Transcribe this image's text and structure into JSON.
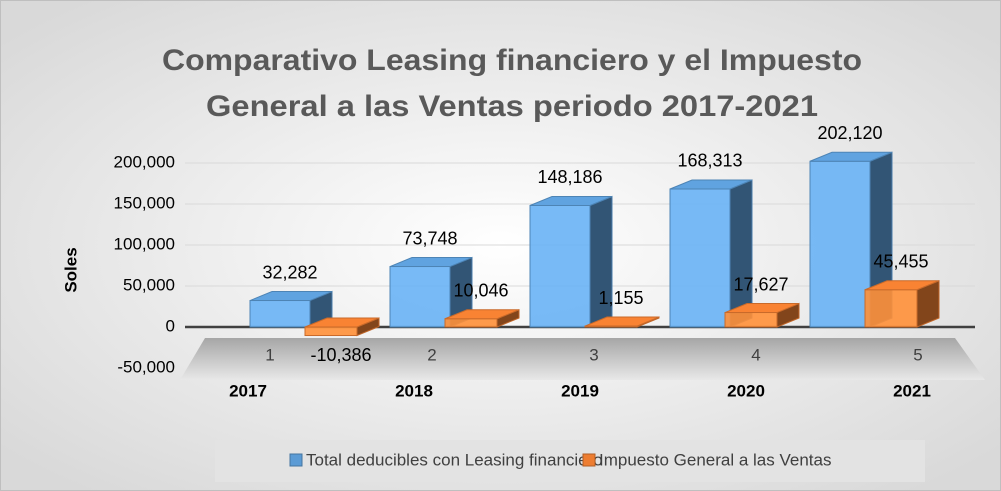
{
  "chart_data": {
    "type": "bar3d",
    "title": "Comparativo Leasing financiero y el Impuesto",
    "subtitle": "General a las Ventas periodo 2017-2021",
    "ylabel": "Soles",
    "categories": [
      "2017",
      "2018",
      "2019",
      "2020",
      "2021"
    ],
    "depth_labels": [
      1,
      2,
      3,
      4,
      5
    ],
    "series": [
      {
        "name": "Total deducibles con Leasing financiero",
        "color": "#5b9bd5",
        "values": [
          32282,
          73748,
          148186,
          168313,
          202120
        ],
        "value_labels": [
          "32,282",
          "73,748",
          "148,186",
          "168,313",
          "202,120"
        ]
      },
      {
        "name": "Impuesto General a las Ventas",
        "color": "#ed7d31",
        "values": [
          -10386,
          10046,
          1155,
          17627,
          45455
        ],
        "value_labels": [
          "-10,386",
          "10,046",
          "1,155",
          "17,627",
          "45,455"
        ]
      }
    ],
    "ylim": [
      -50000,
      200000
    ],
    "yticks": [
      {
        "value": -50000,
        "label": "-50,000"
      },
      0,
      {
        "value": 50000,
        "label": "50,000"
      },
      {
        "value": 100000,
        "label": "100,000"
      },
      {
        "value": 150000,
        "label": "150,000"
      },
      {
        "value": 200000,
        "label": "200,000"
      }
    ],
    "grid": true,
    "legend": "bottom"
  }
}
